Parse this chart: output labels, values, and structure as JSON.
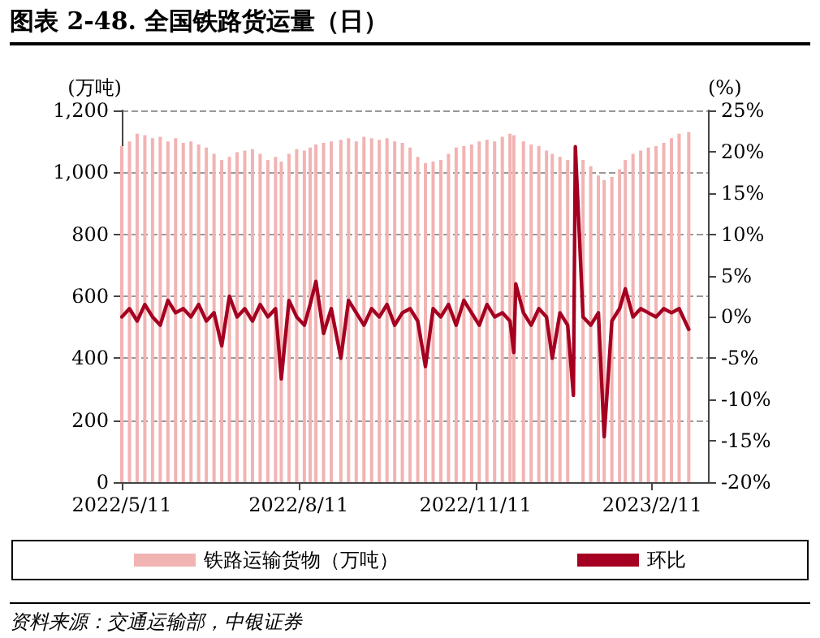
{
  "chart_data": {
    "type": "bar",
    "title": "图表 2-48. 全国铁路货运量（日）",
    "ylabel": "(万吨)",
    "y2label": "(%)",
    "annotations": [
      "资料来源：交通运输部，中银证券"
    ],
    "x": [
      "2022-05-11",
      "2022-05-15",
      "2022-05-19",
      "2022-05-23",
      "2022-05-27",
      "2022-05-31",
      "2022-06-04",
      "2022-06-08",
      "2022-06-12",
      "2022-06-16",
      "2022-06-20",
      "2022-06-24",
      "2022-06-28",
      "2022-07-02",
      "2022-07-06",
      "2022-07-10",
      "2022-07-14",
      "2022-07-18",
      "2022-07-22",
      "2022-07-26",
      "2022-07-30",
      "2022-08-02",
      "2022-08-06",
      "2022-08-10",
      "2022-08-14",
      "2022-08-17",
      "2022-08-20",
      "2022-08-24",
      "2022-08-28",
      "2022-09-02",
      "2022-09-06",
      "2022-09-10",
      "2022-09-14",
      "2022-09-18",
      "2022-09-22",
      "2022-09-26",
      "2022-09-30",
      "2022-10-04",
      "2022-10-08",
      "2022-10-12",
      "2022-10-16",
      "2022-10-20",
      "2022-10-24",
      "2022-10-28",
      "2022-11-01",
      "2022-11-05",
      "2022-11-09",
      "2022-11-13",
      "2022-11-17",
      "2022-11-21",
      "2022-11-25",
      "2022-11-29",
      "2022-12-01",
      "2022-12-06",
      "2022-12-10",
      "2022-12-14",
      "2022-12-18",
      "2022-12-21",
      "2022-12-25",
      "2022-12-29",
      "2023-01-06",
      "2023-01-10",
      "2023-01-14",
      "2023-01-17",
      "2023-01-21",
      "2023-01-25",
      "2023-01-28",
      "2023-02-01",
      "2023-02-05",
      "2023-02-09",
      "2023-02-13",
      "2023-02-17",
      "2023-02-21",
      "2023-02-25",
      "2023-03-02"
    ],
    "series": [
      {
        "name": "铁路运输货物（万吨）",
        "color": "#f2b3b3",
        "values": [
          1085,
          1100,
          1125,
          1120,
          1110,
          1115,
          1100,
          1110,
          1095,
          1100,
          1090,
          1080,
          1060,
          1040,
          1050,
          1065,
          1070,
          1075,
          1060,
          1040,
          1050,
          1035,
          1060,
          1075,
          1070,
          1080,
          1090,
          1095,
          1100,
          1105,
          1110,
          1100,
          1115,
          1110,
          1105,
          1110,
          1100,
          1095,
          1080,
          1050,
          1030,
          1035,
          1040,
          1060,
          1080,
          1085,
          1090,
          1100,
          1105,
          1100,
          1115,
          1125,
          1120,
          1100,
          1090,
          1085,
          1070,
          1060,
          1050,
          1040,
          1040,
          1020,
          990,
          975,
          985,
          1010,
          1040,
          1060,
          1070,
          1080,
          1085,
          1095,
          1110,
          1125,
          1130
        ]
      },
      {
        "name": "环比",
        "type": "line",
        "axis": "y2",
        "color": "#a50021",
        "x": [
          "2022-05-11",
          "2022-05-15",
          "2022-05-19",
          "2022-05-23",
          "2022-05-27",
          "2022-05-31",
          "2022-06-04",
          "2022-06-08",
          "2022-06-12",
          "2022-06-16",
          "2022-06-20",
          "2022-06-24",
          "2022-06-28",
          "2022-07-02",
          "2022-07-06",
          "2022-07-10",
          "2022-07-14",
          "2022-07-18",
          "2022-07-22",
          "2022-07-26",
          "2022-07-30",
          "2022-08-02",
          "2022-08-06",
          "2022-08-10",
          "2022-08-14",
          "2022-08-17",
          "2022-08-20",
          "2022-08-24",
          "2022-08-28",
          "2022-09-02",
          "2022-09-06",
          "2022-09-10",
          "2022-09-14",
          "2022-09-18",
          "2022-09-22",
          "2022-09-26",
          "2022-09-30",
          "2022-10-04",
          "2022-10-08",
          "2022-10-12",
          "2022-10-16",
          "2022-10-20",
          "2022-10-24",
          "2022-10-28",
          "2022-11-01",
          "2022-11-05",
          "2022-11-09",
          "2022-11-13",
          "2022-11-17",
          "2022-11-21",
          "2022-11-25",
          "2022-11-29",
          "2022-12-01",
          "2022-12-02",
          "2022-12-06",
          "2022-12-10",
          "2022-12-14",
          "2022-12-18",
          "2022-12-21",
          "2022-12-25",
          "2022-12-29",
          "2023-01-01",
          "2023-01-02",
          "2023-01-06",
          "2023-01-10",
          "2023-01-14",
          "2023-01-17",
          "2023-01-21",
          "2023-01-25",
          "2023-01-28",
          "2023-02-01",
          "2023-02-05",
          "2023-02-09",
          "2023-02-13",
          "2023-02-17",
          "2023-02-21",
          "2023-02-25",
          "2023-03-02"
        ],
        "values": [
          0,
          1,
          -0.5,
          1.5,
          0,
          -1,
          2,
          0.5,
          1,
          0,
          1.5,
          -0.5,
          0.5,
          -3.5,
          2.5,
          0,
          1,
          -0.5,
          1.5,
          0,
          1,
          -7.5,
          2,
          0,
          -1,
          1.5,
          4.3,
          -2,
          1,
          -5,
          2,
          0.5,
          -1,
          1,
          0,
          1.5,
          -1,
          0.5,
          1,
          -0.5,
          -6,
          1,
          0,
          1.5,
          -1,
          2,
          0.5,
          -1,
          1.5,
          0,
          0.5,
          -0.5,
          -4.3,
          4,
          0.5,
          -1,
          1,
          0,
          -5,
          0.5,
          -1,
          -9.5,
          20.6,
          0,
          -1,
          0.5,
          -14.5,
          -0.5,
          1,
          3.4,
          0,
          1,
          0.5,
          0,
          1,
          0.5,
          1,
          -1.5
        ]
      }
    ],
    "xlim": [
      "2022-05-11",
      "2023-03-12"
    ],
    "xticks": [
      {
        "value": "2022-05-11",
        "label": "2022/5/11"
      },
      {
        "value": "2022-08-11",
        "label": "2022/8/11"
      },
      {
        "value": "2022-11-11",
        "label": "2022/11/11"
      },
      {
        "value": "2023-02-11",
        "label": "2023/2/11"
      }
    ],
    "ylim": [
      0,
      1200
    ],
    "yticks": [
      0,
      200,
      400,
      600,
      800,
      {
        "value": 1000,
        "label": "1,000"
      },
      {
        "value": 1200,
        "label": "1,200"
      }
    ],
    "y2lim": [
      -20,
      25
    ],
    "y2ticks": [
      {
        "value": -20,
        "label": "-20%"
      },
      {
        "value": -15,
        "label": "-15%"
      },
      {
        "value": -10,
        "label": "-10%"
      },
      {
        "value": -5,
        "label": "-5%"
      },
      {
        "value": 0,
        "label": "0%"
      },
      {
        "value": 5,
        "label": "5%"
      },
      {
        "value": 10,
        "label": "10%"
      },
      {
        "value": 15,
        "label": "15%"
      },
      {
        "value": 20,
        "label": "20%"
      },
      {
        "value": 25,
        "label": "25%"
      }
    ],
    "grid": "y",
    "legend": "bottom",
    "line_style": "solid",
    "marker": "none"
  }
}
